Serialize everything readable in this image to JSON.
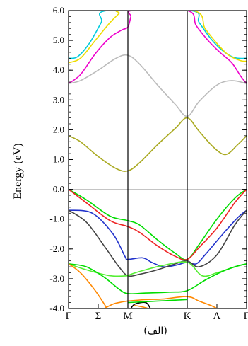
{
  "chart_data": {
    "type": "line",
    "title": "",
    "xlabel": "",
    "ylabel": "Energy (eV)",
    "caption": "(الف)",
    "ylim": [
      -4.0,
      6.0
    ],
    "yticks": [
      -4.0,
      -3.0,
      -2.0,
      -1.0,
      0.0,
      1.0,
      2.0,
      3.0,
      4.0,
      5.0,
      6.0
    ],
    "ytick_labels": [
      "-4.0",
      "-3.0",
      "-2.0",
      "-1.0",
      "0.0",
      "1.0",
      "2.0",
      "3.0",
      "4.0",
      "5.0",
      "6.0"
    ],
    "xlim": [
      0,
      3
    ],
    "kpoints": [
      {
        "x": 0,
        "label": "Γ"
      },
      {
        "x": 0.5,
        "label": "Σ"
      },
      {
        "x": 1,
        "label": "M"
      },
      {
        "x": 2,
        "label": "K"
      },
      {
        "x": 2.5,
        "label": "Λ"
      },
      {
        "x": 3,
        "label": "Γ"
      }
    ],
    "vertical_lines_at": [
      1,
      2
    ],
    "fermi_level": 0.0,
    "grid": false,
    "series": [
      {
        "color": "#00ccdd",
        "points": [
          [
            0,
            4.4
          ],
          [
            0.15,
            4.45
          ],
          [
            0.35,
            4.9
          ],
          [
            0.55,
            5.6
          ],
          [
            0.65,
            6.0
          ],
          [
            2.05,
            6.0
          ],
          [
            2.2,
            5.6
          ],
          [
            2.4,
            5.05
          ],
          [
            2.6,
            4.65
          ],
          [
            2.8,
            4.42
          ],
          [
            3,
            4.4
          ]
        ]
      },
      {
        "color": "#eedd00",
        "points": [
          [
            0,
            4.25
          ],
          [
            0.2,
            4.4
          ],
          [
            0.45,
            5.0
          ],
          [
            0.7,
            5.6
          ],
          [
            0.85,
            5.9
          ],
          [
            0.9,
            6.0
          ],
          [
            2.1,
            6.0
          ],
          [
            2.3,
            5.4
          ],
          [
            2.5,
            4.9
          ],
          [
            2.7,
            4.5
          ],
          [
            2.9,
            4.32
          ],
          [
            3,
            4.3
          ]
        ]
      },
      {
        "color": "#ee00cc",
        "points": [
          [
            0,
            3.55
          ],
          [
            0.2,
            3.85
          ],
          [
            0.45,
            4.55
          ],
          [
            0.7,
            5.1
          ],
          [
            0.9,
            5.35
          ],
          [
            1.0,
            5.45
          ],
          [
            1.05,
            5.8
          ],
          [
            1.08,
            6.0
          ],
          [
            2.0,
            6.0
          ],
          [
            2.15,
            5.5
          ],
          [
            2.35,
            5.0
          ],
          [
            2.55,
            4.6
          ],
          [
            2.75,
            4.25
          ],
          [
            2.9,
            3.8
          ],
          [
            3,
            3.55
          ]
        ]
      },
      {
        "color": "#bbbbbb",
        "points": [
          [
            0,
            3.55
          ],
          [
            0.2,
            3.65
          ],
          [
            0.5,
            4.0
          ],
          [
            0.8,
            4.4
          ],
          [
            1.0,
            4.5
          ],
          [
            1.2,
            4.2
          ],
          [
            1.5,
            3.5
          ],
          [
            1.8,
            2.85
          ],
          [
            2.0,
            2.45
          ],
          [
            2.2,
            2.95
          ],
          [
            2.5,
            3.5
          ],
          [
            2.75,
            3.65
          ],
          [
            3,
            3.55
          ]
        ]
      },
      {
        "color": "#aaaa22",
        "points": [
          [
            0,
            1.8
          ],
          [
            0.2,
            1.6
          ],
          [
            0.5,
            1.1
          ],
          [
            0.8,
            0.7
          ],
          [
            1.0,
            0.62
          ],
          [
            1.2,
            0.9
          ],
          [
            1.5,
            1.5
          ],
          [
            1.8,
            2.05
          ],
          [
            2.0,
            2.4
          ],
          [
            2.2,
            1.95
          ],
          [
            2.45,
            1.4
          ],
          [
            2.65,
            1.17
          ],
          [
            2.85,
            1.5
          ],
          [
            3,
            1.8
          ]
        ]
      },
      {
        "color": "#00dd00",
        "points": [
          [
            0,
            0.0
          ],
          [
            0.3,
            -0.35
          ],
          [
            0.7,
            -0.9
          ],
          [
            1.0,
            -1.05
          ],
          [
            1.2,
            -1.2
          ],
          [
            1.5,
            -1.7
          ],
          [
            1.8,
            -2.15
          ],
          [
            2.0,
            -2.35
          ],
          [
            2.2,
            -1.85
          ],
          [
            2.5,
            -1.0
          ],
          [
            2.8,
            -0.3
          ],
          [
            3,
            0.0
          ]
        ]
      },
      {
        "color": "#ee2222",
        "points": [
          [
            0,
            0.0
          ],
          [
            0.3,
            -0.45
          ],
          [
            0.7,
            -1.05
          ],
          [
            1.0,
            -1.25
          ],
          [
            1.2,
            -1.45
          ],
          [
            1.5,
            -1.9
          ],
          [
            1.8,
            -2.25
          ],
          [
            2.0,
            -2.35
          ],
          [
            2.2,
            -1.95
          ],
          [
            2.5,
            -1.3
          ],
          [
            2.8,
            -0.45
          ],
          [
            3,
            0.0
          ]
        ]
      },
      {
        "color": "#2233cc",
        "points": [
          [
            0,
            -0.7
          ],
          [
            0.4,
            -0.8
          ],
          [
            0.75,
            -1.5
          ],
          [
            0.95,
            -2.25
          ],
          [
            1.0,
            -2.35
          ],
          [
            1.25,
            -2.3
          ],
          [
            1.4,
            -2.45
          ],
          [
            1.6,
            -2.6
          ],
          [
            1.8,
            -2.55
          ],
          [
            2.0,
            -2.45
          ],
          [
            2.15,
            -2.5
          ],
          [
            2.3,
            -2.2
          ],
          [
            2.6,
            -1.5
          ],
          [
            2.85,
            -0.95
          ],
          [
            3,
            -0.7
          ]
        ]
      },
      {
        "color": "#444444",
        "points": [
          [
            0,
            -0.7
          ],
          [
            0.3,
            -1.1
          ],
          [
            0.6,
            -1.9
          ],
          [
            0.85,
            -2.6
          ],
          [
            1.0,
            -2.9
          ],
          [
            1.2,
            -2.85
          ],
          [
            1.5,
            -2.7
          ],
          [
            1.8,
            -2.5
          ],
          [
            2.0,
            -2.4
          ],
          [
            2.2,
            -2.6
          ],
          [
            2.5,
            -2.2
          ],
          [
            2.8,
            -1.2
          ],
          [
            3,
            -0.7
          ]
        ]
      },
      {
        "color": "#55ee33",
        "points": [
          [
            0,
            -2.5
          ],
          [
            0.3,
            -2.7
          ],
          [
            0.7,
            -2.9
          ],
          [
            1.0,
            -2.9
          ],
          [
            1.05,
            -2.85
          ],
          [
            1.3,
            -2.7
          ],
          [
            1.6,
            -2.55
          ],
          [
            2.0,
            -2.45
          ],
          [
            2.25,
            -2.9
          ],
          [
            2.5,
            -2.8
          ],
          [
            2.8,
            -2.6
          ],
          [
            3,
            -2.5
          ]
        ]
      },
      {
        "color": "#00dd00",
        "points": [
          [
            0,
            -2.5
          ],
          [
            0.3,
            -2.6
          ],
          [
            0.6,
            -2.95
          ],
          [
            0.85,
            -3.35
          ],
          [
            1.0,
            -3.5
          ],
          [
            1.3,
            -3.48
          ],
          [
            1.7,
            -3.45
          ],
          [
            2.0,
            -3.4
          ],
          [
            2.3,
            -3.05
          ],
          [
            2.6,
            -2.75
          ],
          [
            2.85,
            -2.57
          ],
          [
            3,
            -2.5
          ]
        ]
      },
      {
        "color": "#ff8800",
        "points": [
          [
            0.6,
            -4.0
          ],
          [
            0.75,
            -3.85
          ],
          [
            0.9,
            -3.78
          ],
          [
            1.0,
            -3.75
          ],
          [
            1.3,
            -3.7
          ],
          [
            1.6,
            -3.68
          ],
          [
            2.0,
            -3.6
          ],
          [
            2.2,
            -3.75
          ],
          [
            2.4,
            -3.9
          ],
          [
            2.5,
            -4.0
          ]
        ]
      },
      {
        "color": "#ff8800",
        "points": [
          [
            0,
            -2.5
          ],
          [
            0.2,
            -2.8
          ],
          [
            0.45,
            -3.4
          ],
          [
            0.65,
            -4.0
          ]
        ]
      },
      {
        "color": "#ff8800",
        "points": [
          [
            1.05,
            -4.0
          ],
          [
            1.1,
            -3.9
          ],
          [
            1.25,
            -3.95
          ],
          [
            1.35,
            -4.0
          ]
        ]
      },
      {
        "color": "#000000",
        "points": [
          [
            1.05,
            -4.0
          ],
          [
            1.12,
            -3.85
          ],
          [
            1.3,
            -3.8
          ],
          [
            1.38,
            -4.0
          ]
        ]
      },
      {
        "color": "#00dd00",
        "points": [
          [
            1.0,
            -3.8
          ],
          [
            1.2,
            -3.78
          ],
          [
            1.5,
            -3.75
          ],
          [
            1.8,
            -3.72
          ],
          [
            2.0,
            -3.7
          ]
        ]
      }
    ]
  }
}
